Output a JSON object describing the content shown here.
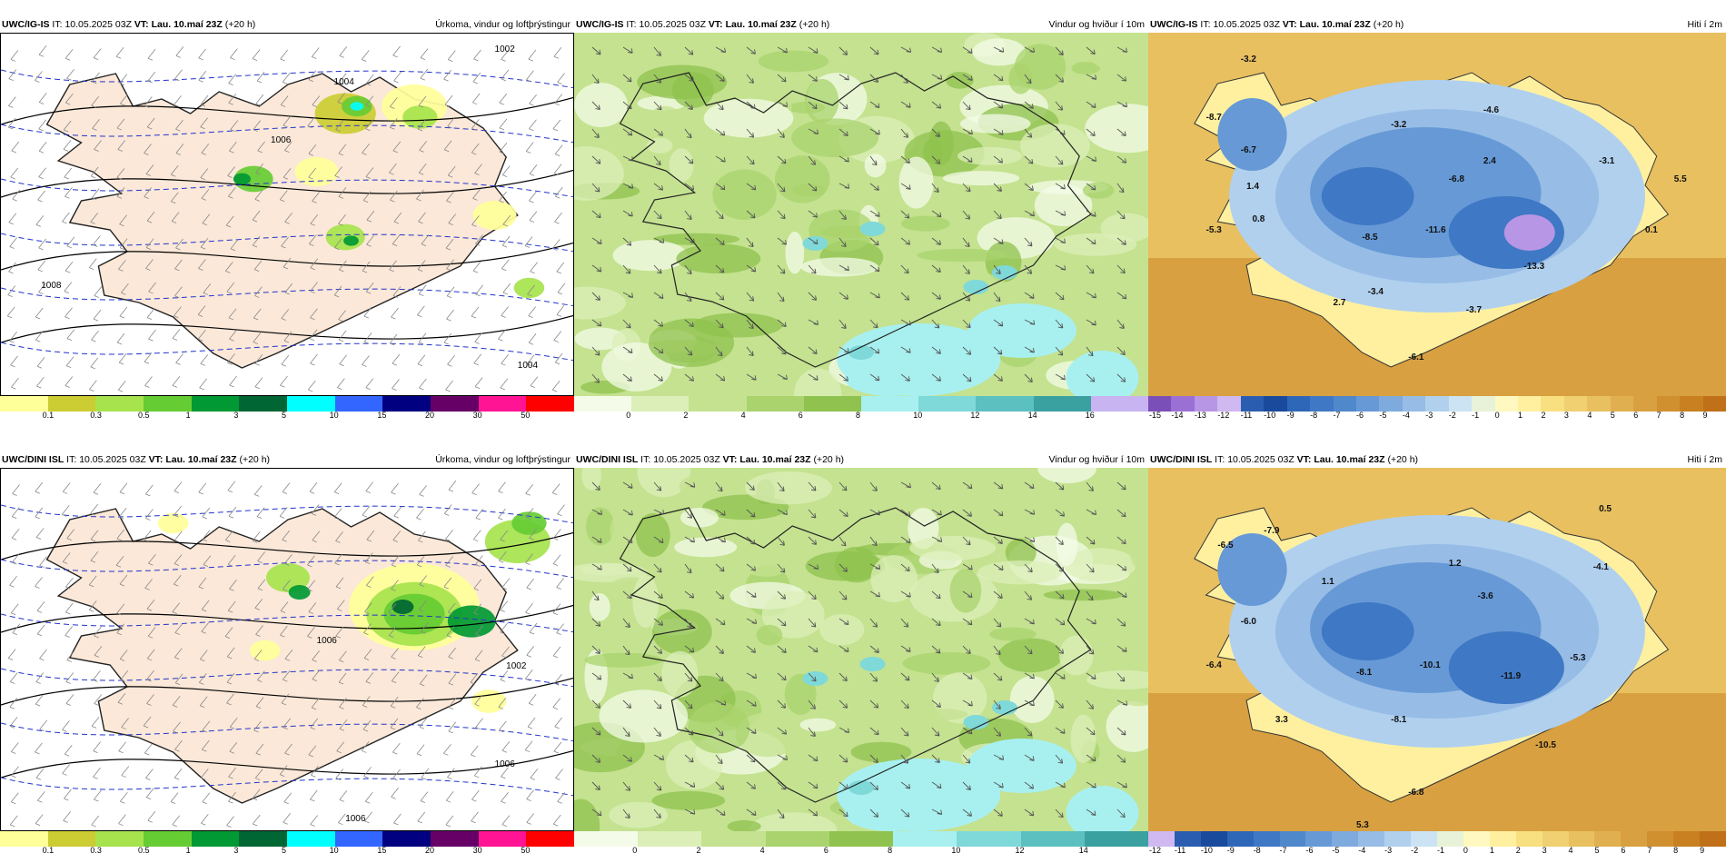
{
  "panels": [
    {
      "model": "UWC/IG-IS",
      "it_label": "IT:",
      "it": "10.05.2025 03Z",
      "vt_label": "VT:",
      "vt": "Lau. 10.maí 23Z",
      "lead": "(+20 h)",
      "title": "Úrkoma, vindur og loftþrýstingur",
      "kind": "precip"
    },
    {
      "model": "UWC/IG-IS",
      "it_label": "IT:",
      "it": "10.05.2025 03Z",
      "vt_label": "VT:",
      "vt": "Lau. 10.maí 23Z",
      "lead": "(+20 h)",
      "title": "Vindur og hviður í 10m",
      "kind": "wind"
    },
    {
      "model": "UWC/IG-IS",
      "it_label": "IT:",
      "it": "10.05.2025 03Z",
      "vt_label": "VT:",
      "vt": "Lau. 10.maí 23Z",
      "lead": "(+20 h)",
      "title": "Hiti í 2m",
      "kind": "temp"
    },
    {
      "model": "UWC/DINI ISL",
      "it_label": "IT:",
      "it": "10.05.2025 03Z",
      "vt_label": "VT:",
      "vt": "Lau. 10.maí 23Z",
      "lead": "(+20 h)",
      "title": "Úrkoma, vindur og loftþrýstingur",
      "kind": "precip"
    },
    {
      "model": "UWC/DINI ISL",
      "it_label": "IT:",
      "it": "10.05.2025 03Z",
      "vt_label": "VT:",
      "vt": "Lau. 10.maí 23Z",
      "lead": "(+20 h)",
      "title": "Vindur og hviður í 10m",
      "kind": "wind"
    },
    {
      "model": "UWC/DINI ISL",
      "it_label": "IT:",
      "it": "10.05.2025 03Z",
      "vt_label": "VT:",
      "vt": "Lau. 10.maí 23Z",
      "lead": "(+20 h)",
      "title": "Hiti í 2m",
      "kind": "temp"
    }
  ],
  "colorbars": {
    "precip": {
      "labels": [
        "0.1",
        "0.3",
        "0.5",
        "1",
        "3",
        "5",
        "10",
        "15",
        "20",
        "30",
        "50"
      ],
      "colors": [
        "#ffff99",
        "#cccc33",
        "#a6e34d",
        "#66cc33",
        "#009933",
        "#006633",
        "#00ffff",
        "#3366ff",
        "#000080",
        "#660066",
        "#ff1493",
        "#ff0000"
      ]
    },
    "wind_top": {
      "labels": [
        "0",
        "2",
        "4",
        "6",
        "8",
        "10",
        "12",
        "14",
        "16"
      ],
      "colors": [
        "#f4fbe8",
        "#dcefb8",
        "#c4e290",
        "#aad36d",
        "#8fc24e",
        "#a8f0f0",
        "#7fd9d9",
        "#5cc0c0",
        "#3aa0a0",
        "#c8b4f0"
      ]
    },
    "wind_bot": {
      "labels": [
        "0",
        "2",
        "4",
        "6",
        "8",
        "10",
        "12",
        "14"
      ],
      "colors": [
        "#f4fbe8",
        "#dcefb8",
        "#c4e290",
        "#aad36d",
        "#8fc24e",
        "#a8f0f0",
        "#7fd9d9",
        "#5cc0c0",
        "#3aa0a0"
      ]
    },
    "temp_top": {
      "labels": [
        "-15",
        "-14",
        "-13",
        "-12",
        "-11",
        "-10",
        "-9",
        "-8",
        "-7",
        "-6",
        "-5",
        "-4",
        "-3",
        "-2",
        "-1",
        "0",
        "1",
        "2",
        "3",
        "4",
        "5",
        "6",
        "7",
        "8",
        "9"
      ],
      "colors": [
        "#7b4fb8",
        "#9b70d4",
        "#b896e6",
        "#d0b8f0",
        "#2a5db0",
        "#1a4a9c",
        "#2e66b8",
        "#3f78c4",
        "#5088cc",
        "#6699d6",
        "#7faadd",
        "#97bce6",
        "#b0d0ee",
        "#cce3f4",
        "#e8f2d8",
        "#fff8c0",
        "#fff0a0",
        "#f8e080",
        "#f0d070",
        "#e8c060",
        "#e0b050",
        "#d8a040",
        "#d09030",
        "#c88020",
        "#c07018"
      ]
    },
    "temp_bot": {
      "labels": [
        "-12",
        "-11",
        "-10",
        "-9",
        "-8",
        "-7",
        "-6",
        "-5",
        "-4",
        "-3",
        "-2",
        "-1",
        "0",
        "1",
        "2",
        "3",
        "4",
        "5",
        "6",
        "7",
        "8",
        "9"
      ],
      "colors": [
        "#d0b8f0",
        "#2a5db0",
        "#1a4a9c",
        "#2e66b8",
        "#3f78c4",
        "#5088cc",
        "#6699d6",
        "#7faadd",
        "#97bce6",
        "#b0d0ee",
        "#cce3f4",
        "#e8f2d8",
        "#fff8c0",
        "#fff0a0",
        "#f8e080",
        "#f0d070",
        "#e8c060",
        "#e0b050",
        "#d8a040",
        "#d09030",
        "#c88020",
        "#c07018"
      ]
    }
  },
  "isobar_labels_top": [
    "1002",
    "1004",
    "1006",
    "1008",
    "1004"
  ],
  "isobar_labels_bot": [
    "1002",
    "1006",
    "1006",
    "1006"
  ],
  "temp_values_top": [
    "-3.2",
    "-8.7",
    "-6.7",
    "-3.2",
    "-4.6",
    "1.4",
    "2.4",
    "-3.1",
    "5.5",
    "-5.3",
    "0.8",
    "-6.8",
    "-8.5",
    "-11.6",
    "0.1",
    "-13.3",
    "2.7",
    "-3.4",
    "-3.7",
    "-6.1"
  ],
  "temp_values_bot": [
    "-6.5",
    "-7.9",
    "1.1",
    "1.2",
    "-3.6",
    "-4.1",
    "0.5",
    "-6.0",
    "-6.4",
    "-8.1",
    "-10.1",
    "-11.9",
    "-5.3",
    "3.3",
    "-8.1",
    "-10.5",
    "-6.8",
    "5.3"
  ]
}
